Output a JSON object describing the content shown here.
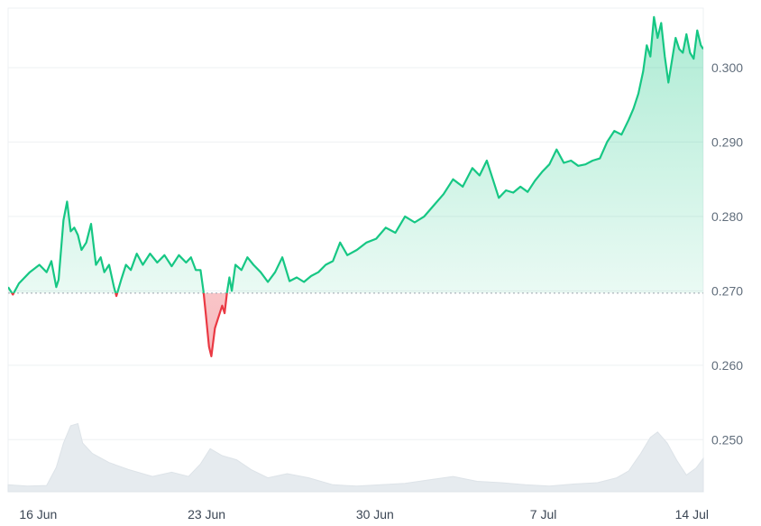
{
  "chart_data": {
    "type": "area",
    "title": "",
    "xlabel": "",
    "ylabel": "",
    "ylim": [
      0.243,
      0.308
    ],
    "y_ticks": [
      "0.250",
      "0.260",
      "0.270",
      "0.280",
      "0.290",
      "0.300"
    ],
    "x_ticks": [
      "16 Jun",
      "23 Jun",
      "30 Jun",
      "7 Jul",
      "14 Jul"
    ],
    "baseline": 0.2697,
    "grid": true,
    "colors": {
      "above": "#16c784",
      "below": "#ea3943",
      "volume": "#e6ebef",
      "grid": "#eef0f3",
      "baseline": "#9aa3ad"
    },
    "series": [
      {
        "values": [
          [
            0.0,
            0.2705
          ],
          [
            0.2,
            0.2695
          ],
          [
            0.45,
            0.271
          ],
          [
            0.9,
            0.2725
          ],
          [
            1.3,
            0.2735
          ],
          [
            1.6,
            0.2725
          ],
          [
            1.8,
            0.274
          ],
          [
            2.0,
            0.2705
          ],
          [
            2.1,
            0.2715
          ],
          [
            2.3,
            0.2795
          ],
          [
            2.45,
            0.282
          ],
          [
            2.6,
            0.278
          ],
          [
            2.75,
            0.2785
          ],
          [
            2.9,
            0.2775
          ],
          [
            3.05,
            0.2755
          ],
          [
            3.25,
            0.2765
          ],
          [
            3.45,
            0.279
          ],
          [
            3.65,
            0.2735
          ],
          [
            3.85,
            0.2745
          ],
          [
            4.0,
            0.2725
          ],
          [
            4.2,
            0.2735
          ],
          [
            4.4,
            0.2705
          ],
          [
            4.5,
            0.2693
          ],
          [
            4.7,
            0.2715
          ],
          [
            4.9,
            0.2735
          ],
          [
            5.1,
            0.2728
          ],
          [
            5.35,
            0.275
          ],
          [
            5.6,
            0.2735
          ],
          [
            5.9,
            0.275
          ],
          [
            6.2,
            0.2738
          ],
          [
            6.5,
            0.2748
          ],
          [
            6.8,
            0.2733
          ],
          [
            7.1,
            0.2748
          ],
          [
            7.4,
            0.2738
          ],
          [
            7.6,
            0.2745
          ],
          [
            7.8,
            0.2728
          ],
          [
            8.0,
            0.2728
          ],
          [
            8.12,
            0.27
          ],
          [
            8.22,
            0.2668
          ],
          [
            8.35,
            0.2625
          ],
          [
            8.45,
            0.2612
          ],
          [
            8.6,
            0.265
          ],
          [
            8.75,
            0.2665
          ],
          [
            8.9,
            0.268
          ],
          [
            9.0,
            0.267
          ],
          [
            9.1,
            0.2698
          ],
          [
            9.2,
            0.2718
          ],
          [
            9.3,
            0.27
          ],
          [
            9.45,
            0.2735
          ],
          [
            9.7,
            0.2728
          ],
          [
            9.95,
            0.2745
          ],
          [
            10.2,
            0.2735
          ],
          [
            10.5,
            0.2725
          ],
          [
            10.8,
            0.2712
          ],
          [
            11.1,
            0.2725
          ],
          [
            11.4,
            0.2745
          ],
          [
            11.7,
            0.2713
          ],
          [
            12.0,
            0.2718
          ],
          [
            12.3,
            0.2712
          ],
          [
            12.6,
            0.272
          ],
          [
            12.9,
            0.2725
          ],
          [
            13.2,
            0.2735
          ],
          [
            13.5,
            0.274
          ],
          [
            13.8,
            0.2765
          ],
          [
            14.1,
            0.2748
          ],
          [
            14.5,
            0.2755
          ],
          [
            14.9,
            0.2765
          ],
          [
            15.3,
            0.277
          ],
          [
            15.7,
            0.2785
          ],
          [
            16.1,
            0.2778
          ],
          [
            16.5,
            0.28
          ],
          [
            16.9,
            0.2792
          ],
          [
            17.3,
            0.28
          ],
          [
            17.7,
            0.2815
          ],
          [
            18.1,
            0.283
          ],
          [
            18.5,
            0.285
          ],
          [
            18.9,
            0.284
          ],
          [
            19.3,
            0.2865
          ],
          [
            19.6,
            0.2855
          ],
          [
            19.9,
            0.2875
          ],
          [
            20.15,
            0.285
          ],
          [
            20.4,
            0.2825
          ],
          [
            20.7,
            0.2835
          ],
          [
            21.0,
            0.2832
          ],
          [
            21.3,
            0.284
          ],
          [
            21.6,
            0.2833
          ],
          [
            21.9,
            0.2848
          ],
          [
            22.2,
            0.286
          ],
          [
            22.5,
            0.287
          ],
          [
            22.8,
            0.289
          ],
          [
            23.1,
            0.2872
          ],
          [
            23.4,
            0.2875
          ],
          [
            23.7,
            0.2868
          ],
          [
            24.0,
            0.287
          ],
          [
            24.3,
            0.2875
          ],
          [
            24.6,
            0.2878
          ],
          [
            24.9,
            0.29
          ],
          [
            25.2,
            0.2915
          ],
          [
            25.5,
            0.291
          ],
          [
            25.8,
            0.293
          ],
          [
            26.0,
            0.2945
          ],
          [
            26.2,
            0.2965
          ],
          [
            26.4,
            0.2995
          ],
          [
            26.55,
            0.303
          ],
          [
            26.7,
            0.3015
          ],
          [
            26.85,
            0.3068
          ],
          [
            27.0,
            0.304
          ],
          [
            27.15,
            0.306
          ],
          [
            27.3,
            0.3015
          ],
          [
            27.45,
            0.298
          ],
          [
            27.6,
            0.301
          ],
          [
            27.75,
            0.304
          ],
          [
            27.9,
            0.3025
          ],
          [
            28.05,
            0.302
          ],
          [
            28.2,
            0.3045
          ],
          [
            28.35,
            0.302
          ],
          [
            28.5,
            0.3012
          ],
          [
            28.65,
            0.305
          ],
          [
            28.8,
            0.303
          ],
          [
            28.9,
            0.3025
          ]
        ]
      }
    ],
    "volume": [
      [
        0.0,
        0.1
      ],
      [
        0.8,
        0.08
      ],
      [
        1.6,
        0.09
      ],
      [
        2.0,
        0.35
      ],
      [
        2.3,
        0.7
      ],
      [
        2.6,
        0.95
      ],
      [
        2.9,
        0.98
      ],
      [
        3.1,
        0.7
      ],
      [
        3.5,
        0.55
      ],
      [
        4.2,
        0.42
      ],
      [
        5.0,
        0.32
      ],
      [
        6.0,
        0.22
      ],
      [
        6.8,
        0.28
      ],
      [
        7.5,
        0.22
      ],
      [
        8.0,
        0.4
      ],
      [
        8.4,
        0.62
      ],
      [
        8.9,
        0.52
      ],
      [
        9.5,
        0.46
      ],
      [
        10.1,
        0.32
      ],
      [
        10.8,
        0.2
      ],
      [
        11.6,
        0.26
      ],
      [
        12.5,
        0.2
      ],
      [
        13.5,
        0.1
      ],
      [
        14.5,
        0.08
      ],
      [
        15.5,
        0.1
      ],
      [
        16.5,
        0.12
      ],
      [
        17.5,
        0.17
      ],
      [
        18.5,
        0.22
      ],
      [
        19.5,
        0.15
      ],
      [
        20.5,
        0.13
      ],
      [
        21.5,
        0.1
      ],
      [
        22.5,
        0.08
      ],
      [
        23.5,
        0.11
      ],
      [
        24.5,
        0.13
      ],
      [
        25.3,
        0.2
      ],
      [
        25.8,
        0.3
      ],
      [
        26.3,
        0.55
      ],
      [
        26.7,
        0.78
      ],
      [
        27.0,
        0.86
      ],
      [
        27.4,
        0.7
      ],
      [
        27.8,
        0.45
      ],
      [
        28.2,
        0.24
      ],
      [
        28.6,
        0.34
      ],
      [
        28.9,
        0.48
      ]
    ]
  }
}
